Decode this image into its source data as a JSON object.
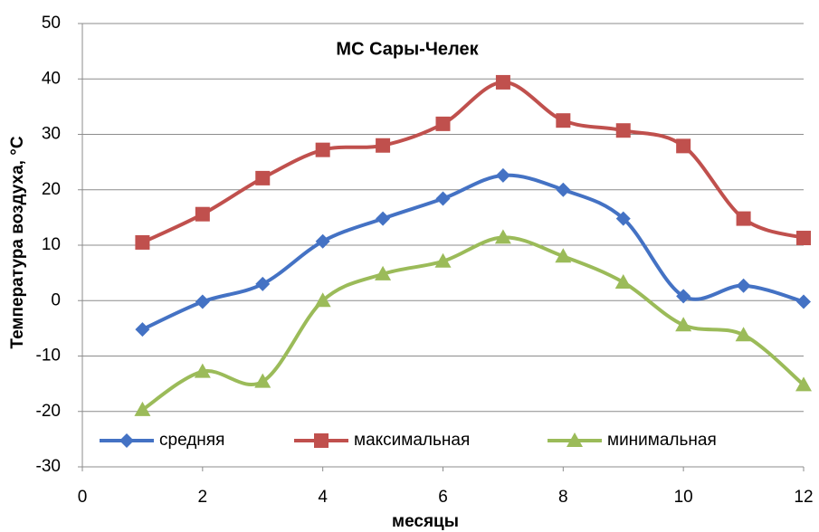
{
  "chart_data": {
    "type": "line",
    "title": "МС Сары-Челек",
    "xlabel": "месяцы",
    "ylabel": "Температура воздуха, °С",
    "x": [
      1,
      2,
      3,
      4,
      5,
      6,
      7,
      8,
      9,
      10,
      11,
      12
    ],
    "series": [
      {
        "name": "средняя",
        "color": "#4472c4",
        "marker": "diamond",
        "values": [
          -5.2,
          -0.2,
          3,
          10.7,
          14.8,
          18.4,
          22.6,
          20,
          14.8,
          0.8,
          2.7,
          -0.2
        ]
      },
      {
        "name": "максимальная",
        "color": "#c0504d",
        "marker": "square",
        "values": [
          10.5,
          15.6,
          22.1,
          27.2,
          28,
          31.9,
          39.4,
          32.5,
          30.7,
          27.9,
          14.8,
          11.3
        ]
      },
      {
        "name": "минимальная",
        "color": "#9bbb59",
        "marker": "triangle",
        "values": [
          -19.7,
          -12.8,
          -14.6,
          0,
          4.8,
          7.1,
          11.4,
          8,
          3.3,
          -4.4,
          -6.2,
          -15.2
        ]
      }
    ],
    "xlim": [
      0,
      12
    ],
    "xticks": [
      0,
      2,
      4,
      6,
      8,
      10,
      12
    ],
    "ylim": [
      -30,
      50
    ],
    "yticks": [
      -30,
      -20,
      -10,
      0,
      10,
      20,
      30,
      40,
      50
    ],
    "grid": true,
    "smooth": true,
    "legend": "lower center"
  }
}
